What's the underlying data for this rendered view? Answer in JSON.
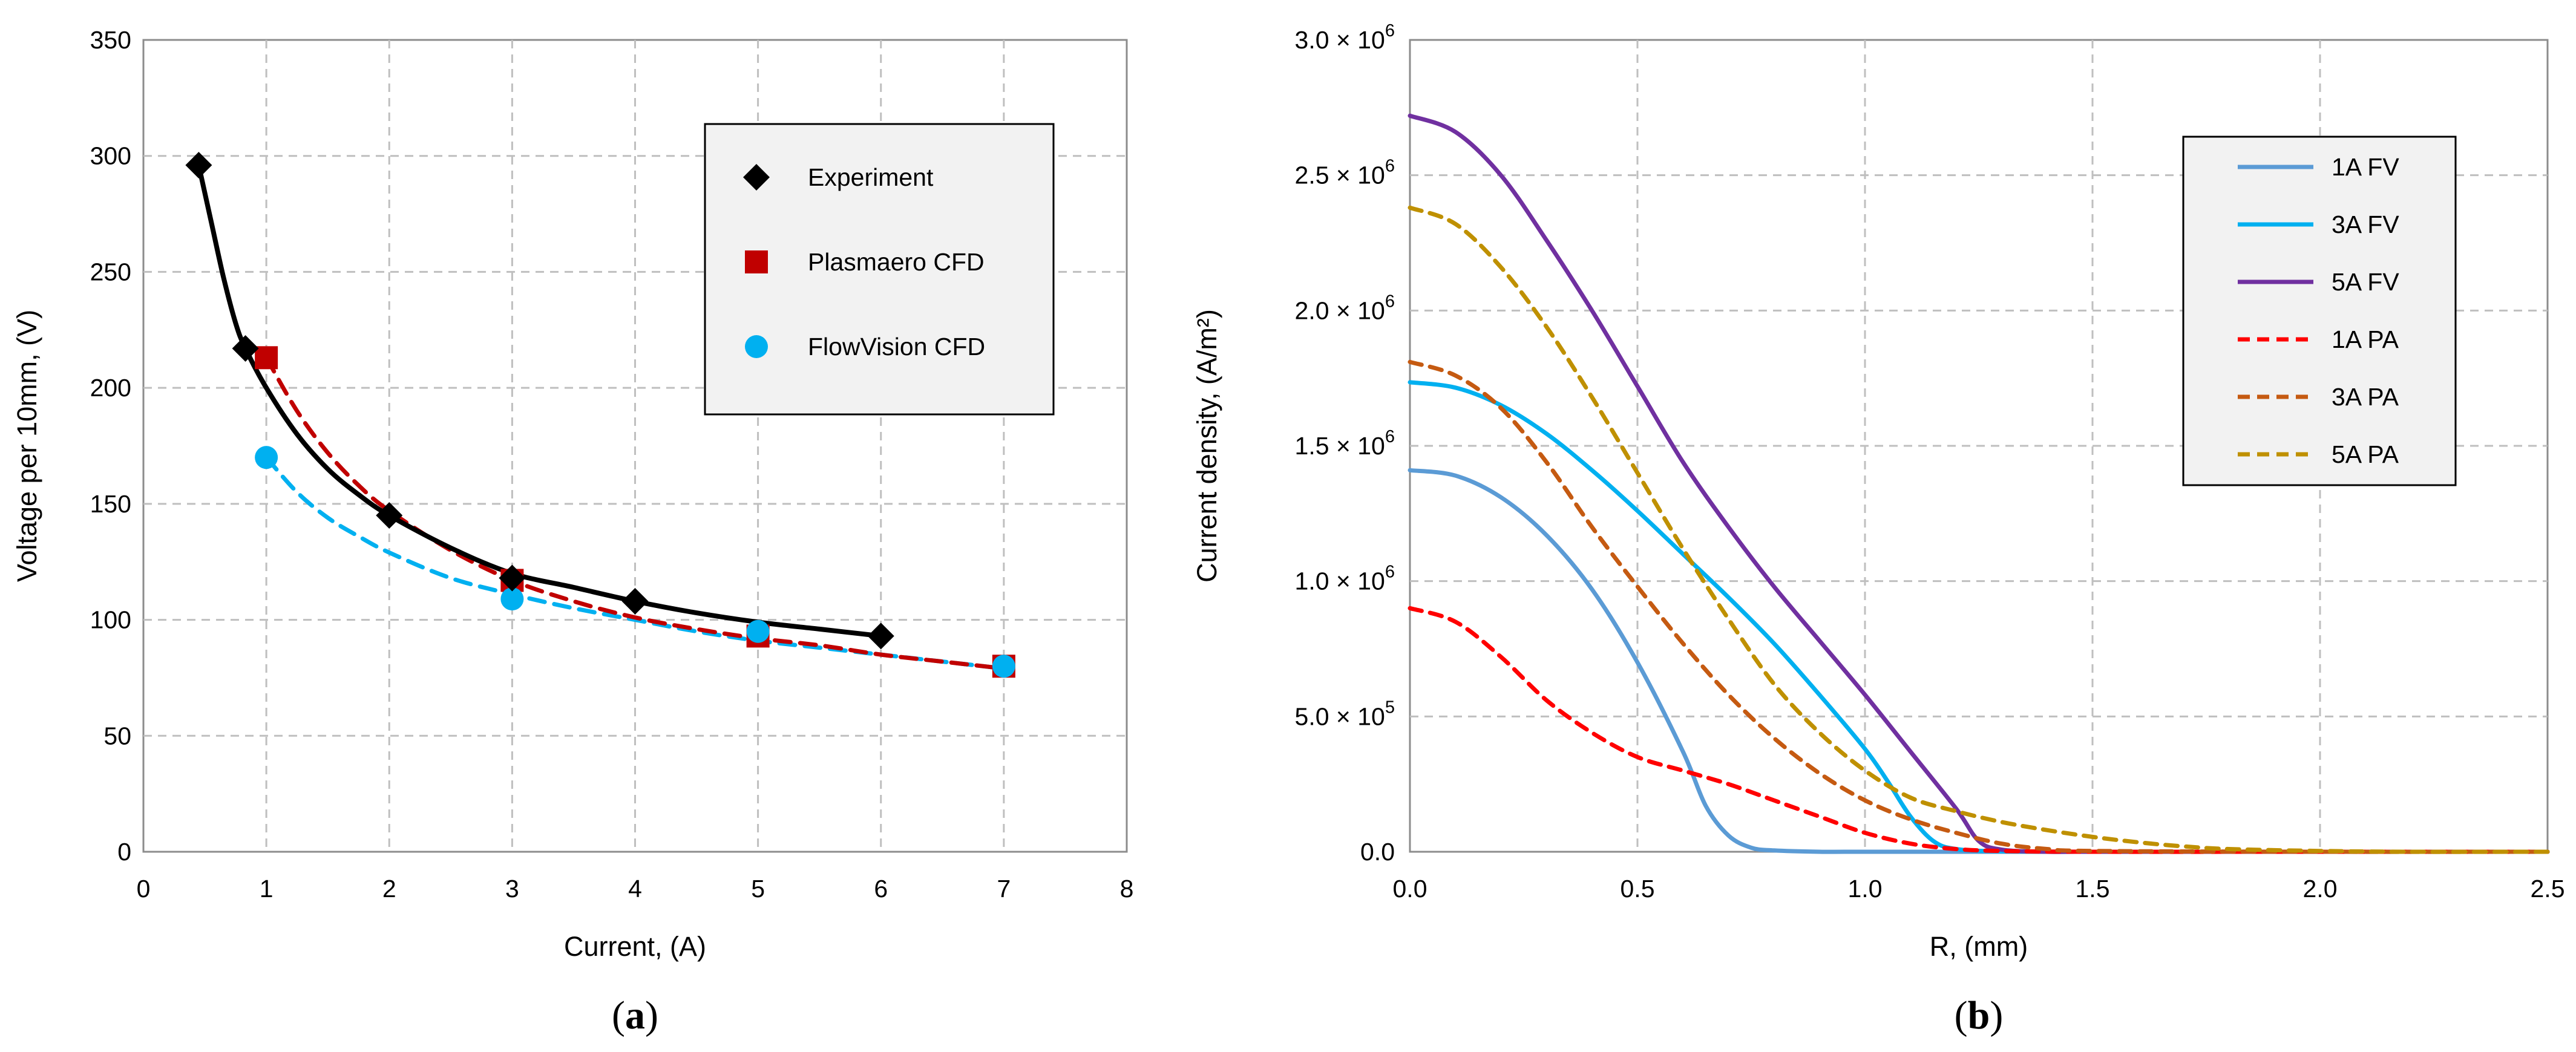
{
  "chart_data": [
    {
      "type": "scatter",
      "caption": "a",
      "xlabel": "Current, (A)",
      "ylabel": "Voltage per 10mm, (V)",
      "xlim": [
        0,
        8
      ],
      "ylim": [
        0,
        350
      ],
      "xticks": [
        0,
        1,
        2,
        3,
        4,
        5,
        6,
        7,
        8
      ],
      "yticks": [
        0,
        50,
        100,
        150,
        200,
        250,
        300,
        350
      ],
      "grid": true,
      "legend_position": "top-right",
      "series": [
        {
          "name": "Experiment",
          "marker": "diamond",
          "color": "#000000",
          "points": [
            [
              0.45,
              296
            ],
            [
              0.83,
              217
            ],
            [
              2,
              145
            ],
            [
              3,
              118
            ],
            [
              4,
              108
            ],
            [
              6,
              93
            ]
          ],
          "fit_line": {
            "style": "solid",
            "color": "#000000",
            "x": [
              0.45,
              0.55,
              0.65,
              0.75,
              0.83,
              1.0,
              1.25,
              1.5,
              1.75,
              2.0,
              2.5,
              3.0,
              3.5,
              4.0,
              4.5,
              5.0,
              5.5,
              6.0
            ],
            "y": [
              296,
              272,
              248,
              228,
              217,
              200,
              180,
              165,
              154,
              145,
              131,
              120,
              114,
              108,
              103,
              99,
              96,
              93
            ]
          }
        },
        {
          "name": "Plasmaero CFD",
          "marker": "square",
          "color": "#c00000",
          "points": [
            [
              1,
              213
            ],
            [
              3,
              117
            ],
            [
              5,
              93
            ],
            [
              7,
              80
            ]
          ],
          "fit_line": {
            "style": "dashed",
            "color": "#c00000",
            "x": [
              1.0,
              1.25,
              1.5,
              1.75,
              2.0,
              2.5,
              3.0,
              3.5,
              4.0,
              4.5,
              5.0,
              5.5,
              6.0,
              6.5,
              7.0
            ],
            "y": [
              213,
              190,
              172,
              158,
              147,
              130,
              117,
              108,
              101,
              96,
              92,
              89,
              85,
              82,
              79
            ]
          }
        },
        {
          "name": "FlowVision CFD",
          "marker": "circle",
          "color": "#00b0f0",
          "points": [
            [
              1,
              170
            ],
            [
              3,
              109
            ],
            [
              5,
              95
            ],
            [
              7,
              80
            ]
          ],
          "fit_line": {
            "style": "dashed",
            "color": "#00b0f0",
            "x": [
              1.0,
              1.25,
              1.5,
              1.75,
              2.0,
              2.5,
              3.0,
              3.5,
              4.0,
              4.5,
              5.0,
              5.5,
              6.0,
              6.5,
              7.0
            ],
            "y": [
              170,
              155,
              144,
              136,
              129,
              118,
              111,
              105,
              100,
              95,
              91,
              88,
              85,
              82,
              79
            ]
          }
        }
      ]
    },
    {
      "type": "line",
      "caption": "b",
      "xlabel": "R, (mm)",
      "ylabel": "Current density, (A/m²)",
      "xlim": [
        0,
        2.5
      ],
      "ylim": [
        0,
        3000000
      ],
      "xticks": [
        0,
        0.5,
        1,
        1.5,
        2,
        2.5
      ],
      "xtick_labels": [
        "0.0",
        "0.5",
        "1.0",
        "1.5",
        "2.0",
        "2.5"
      ],
      "yticks": [
        0,
        500000,
        1000000,
        1500000,
        2000000,
        2500000,
        3000000
      ],
      "ytick_labels": [
        {
          "mantissa": "0.0",
          "exp": ""
        },
        {
          "mantissa": "5.0 × 10",
          "exp": "5"
        },
        {
          "mantissa": "1.0 × 10",
          "exp": "6"
        },
        {
          "mantissa": "1.5 × 10",
          "exp": "6"
        },
        {
          "mantissa": "2.0 × 10",
          "exp": "6"
        },
        {
          "mantissa": "2.5 × 10",
          "exp": "6"
        },
        {
          "mantissa": "3.0 × 10",
          "exp": "6"
        }
      ],
      "grid": true,
      "legend_position": "top-right",
      "series": [
        {
          "name": "1A FV",
          "style": "solid",
          "color": "#5b9bd5",
          "x": [
            0,
            0.1,
            0.2,
            0.3,
            0.4,
            0.5,
            0.6,
            0.65,
            0.7,
            0.75,
            0.8,
            0.9,
            1.0,
            1.5,
            2.0,
            2.5
          ],
          "y": [
            1410000,
            1390000,
            1310000,
            1170000,
            970000,
            700000,
            370000,
            170000,
            60000,
            15000,
            5000,
            0,
            0,
            0,
            0,
            0
          ]
        },
        {
          "name": "3A FV",
          "style": "solid",
          "color": "#00b0f0",
          "x": [
            0,
            0.1,
            0.2,
            0.3,
            0.4,
            0.5,
            0.6,
            0.7,
            0.8,
            0.9,
            1.0,
            1.05,
            1.1,
            1.15,
            1.2,
            1.3,
            1.5,
            2.0,
            2.5
          ],
          "y": [
            1735000,
            1715000,
            1650000,
            1545000,
            1410000,
            1260000,
            1100000,
            940000,
            770000,
            580000,
            380000,
            260000,
            130000,
            40000,
            10000,
            2000,
            0,
            0,
            0
          ]
        },
        {
          "name": "5A FV",
          "style": "solid",
          "color": "#7030a0",
          "x": [
            0,
            0.1,
            0.2,
            0.3,
            0.4,
            0.5,
            0.6,
            0.7,
            0.8,
            0.9,
            1.0,
            1.1,
            1.2,
            1.25,
            1.3,
            1.4,
            1.5,
            2.0,
            2.5
          ],
          "y": [
            2720000,
            2660000,
            2500000,
            2260000,
            2000000,
            1720000,
            1440000,
            1200000,
            980000,
            780000,
            580000,
            370000,
            160000,
            40000,
            8000,
            0,
            0,
            0,
            0
          ]
        },
        {
          "name": "1A PA",
          "style": "dashed",
          "color": "#ff0000",
          "x": [
            0,
            0.1,
            0.2,
            0.3,
            0.4,
            0.5,
            0.6,
            0.7,
            0.8,
            0.9,
            1.0,
            1.1,
            1.2,
            1.3,
            1.5,
            2.0,
            2.5
          ],
          "y": [
            900000,
            850000,
            720000,
            560000,
            440000,
            350000,
            300000,
            250000,
            190000,
            130000,
            70000,
            30000,
            10000,
            3000,
            0,
            0,
            0
          ]
        },
        {
          "name": "3A PA",
          "style": "dashed",
          "color": "#c55a11",
          "x": [
            0,
            0.1,
            0.2,
            0.3,
            0.4,
            0.5,
            0.6,
            0.7,
            0.8,
            0.9,
            1.0,
            1.1,
            1.2,
            1.3,
            1.4,
            1.5,
            2.0,
            2.5
          ],
          "y": [
            1810000,
            1760000,
            1640000,
            1440000,
            1200000,
            980000,
            770000,
            580000,
            420000,
            290000,
            190000,
            120000,
            70000,
            30000,
            10000,
            3000,
            0,
            0
          ]
        },
        {
          "name": "5A PA",
          "style": "dashed",
          "color": "#bf9000",
          "x": [
            0,
            0.1,
            0.2,
            0.3,
            0.4,
            0.5,
            0.6,
            0.7,
            0.8,
            0.9,
            1.0,
            1.1,
            1.2,
            1.3,
            1.4,
            1.5,
            1.6,
            1.7,
            1.8,
            2.0,
            2.2,
            2.5
          ],
          "y": [
            2380000,
            2320000,
            2160000,
            1940000,
            1680000,
            1400000,
            1120000,
            860000,
            620000,
            440000,
            300000,
            200000,
            150000,
            110000,
            80000,
            55000,
            35000,
            20000,
            10000,
            3000,
            0,
            0
          ]
        }
      ]
    }
  ]
}
